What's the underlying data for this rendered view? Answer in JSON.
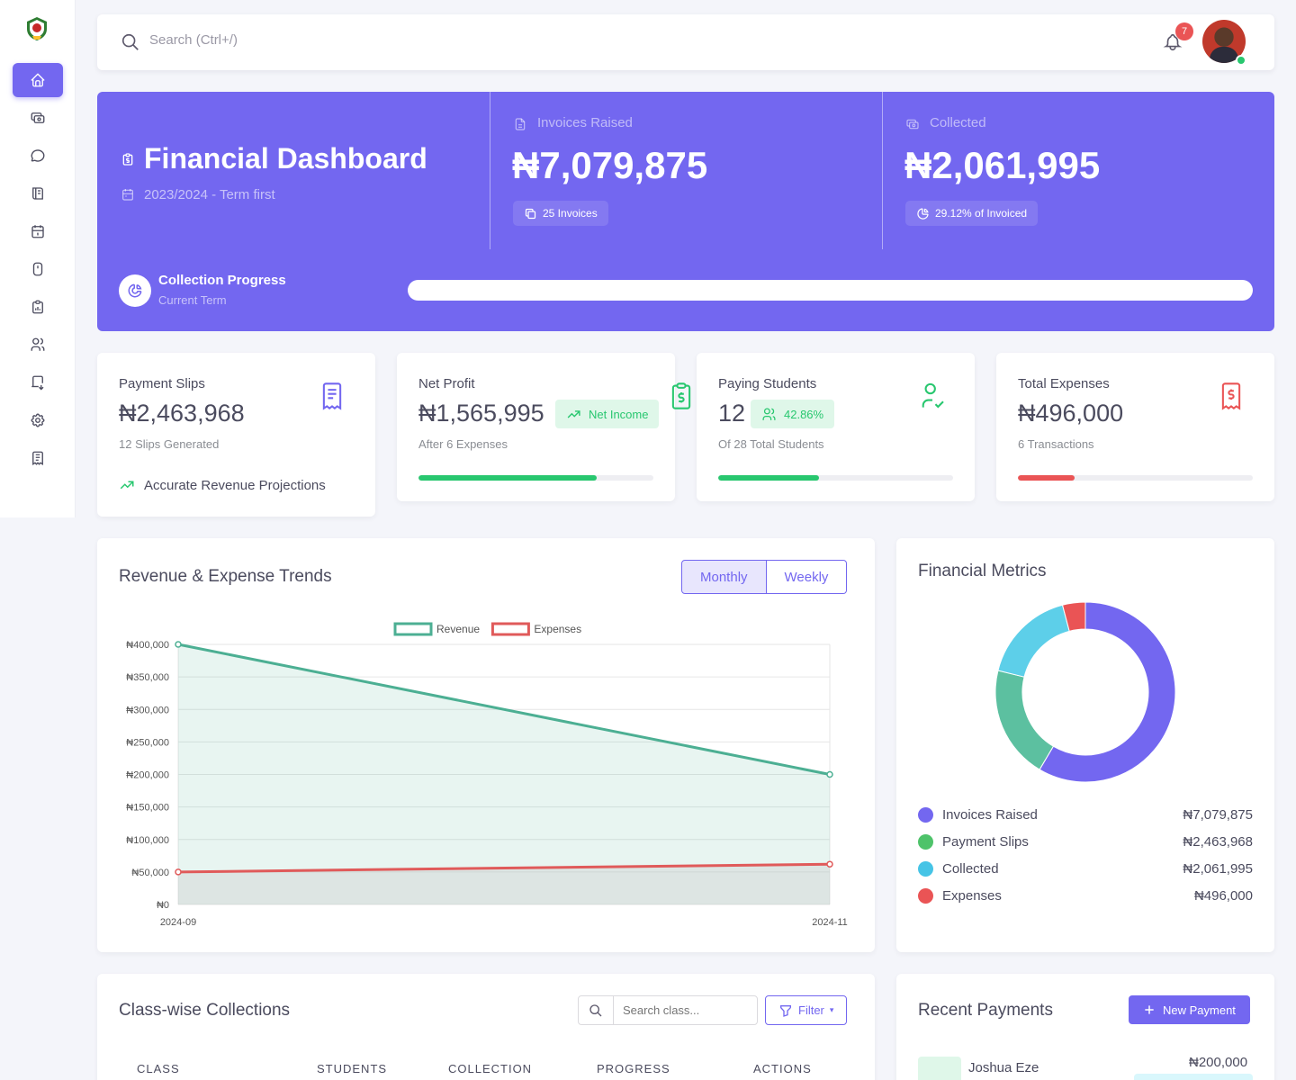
{
  "topbar": {
    "search_placeholder": "Search (Ctrl+/)",
    "notification_count": "7"
  },
  "sidebar": {
    "items": [
      {
        "icon": "home-icon",
        "active": true
      },
      {
        "icon": "cash-icon"
      },
      {
        "icon": "message-icon"
      },
      {
        "icon": "book-icon"
      },
      {
        "icon": "calendar-icon"
      },
      {
        "icon": "mouse-icon"
      },
      {
        "icon": "clipboard-icon"
      },
      {
        "icon": "users-icon"
      },
      {
        "icon": "receipt-download-icon"
      },
      {
        "icon": "settings-icon"
      },
      {
        "icon": "report-icon"
      }
    ]
  },
  "hero": {
    "title": "Financial Dashboard",
    "term": "2023/2024 - Term first",
    "invoices_label": "Invoices Raised",
    "invoices_value": "₦7,079,875",
    "invoices_chip": "25 Invoices",
    "collected_label": "Collected",
    "collected_value": "₦2,061,995",
    "collected_chip": "29.12% of Invoiced",
    "progress_title": "Collection Progress",
    "progress_sub": "Current Term",
    "progress_value": 0
  },
  "cards": {
    "slips": {
      "label": "Payment Slips",
      "value": "₦2,463,968",
      "sub": "12 Slips Generated",
      "note": "Accurate Revenue Projections"
    },
    "profit": {
      "label": "Net Profit",
      "value": "₦1,565,995",
      "pill": "Net Income",
      "sub": "After 6 Expenses",
      "progress": 0.76
    },
    "students": {
      "label": "Paying Students",
      "value": "12",
      "pill": "42.86%",
      "sub": "Of 28 Total Students",
      "progress": 0.43
    },
    "expenses": {
      "label": "Total Expenses",
      "value": "₦496,000",
      "sub": "6 Transactions",
      "progress": 0.24
    }
  },
  "trends": {
    "title": "Revenue & Expense Trends",
    "tabs": [
      "Monthly",
      "Weekly"
    ]
  },
  "chart_data": {
    "type": "line",
    "x": [
      "2024-09",
      "2024-11"
    ],
    "series": [
      {
        "name": "Revenue",
        "values": [
          400000,
          200000
        ],
        "color": "#4caf93"
      },
      {
        "name": "Expenses",
        "values": [
          50000,
          62000
        ],
        "color": "#e05a5a"
      }
    ],
    "ylim": [
      0,
      400000
    ],
    "yticks": [
      "₦0",
      "₦50,000",
      "₦100,000",
      "₦150,000",
      "₦200,000",
      "₦250,000",
      "₦300,000",
      "₦350,000",
      "₦400,000"
    ],
    "legend": "top",
    "grid": true
  },
  "metrics": {
    "title": "Financial Metrics",
    "items": [
      {
        "label": "Invoices Raised",
        "value": "₦7,079,875",
        "amount": 7079875,
        "color": "#7367f0"
      },
      {
        "label": "Payment Slips",
        "value": "₦2,463,968",
        "amount": 2463968,
        "color": "#5cc0a0"
      },
      {
        "label": "Collected",
        "value": "₦2,061,995",
        "amount": 2061995,
        "color": "#5dcfe9"
      },
      {
        "label": "Expenses",
        "value": "₦496,000",
        "amount": 496000,
        "color": "#ea5455"
      }
    ]
  },
  "classwise": {
    "title": "Class-wise Collections",
    "search_placeholder": "Search class...",
    "filter_label": "Filter",
    "columns": [
      "CLASS",
      "STUDENTS",
      "COLLECTION",
      "PROGRESS",
      "ACTIONS"
    ]
  },
  "recent": {
    "title": "Recent Payments",
    "new_button": "New Payment",
    "first_name": "Joshua Eze",
    "first_amount": "₦200,000"
  }
}
